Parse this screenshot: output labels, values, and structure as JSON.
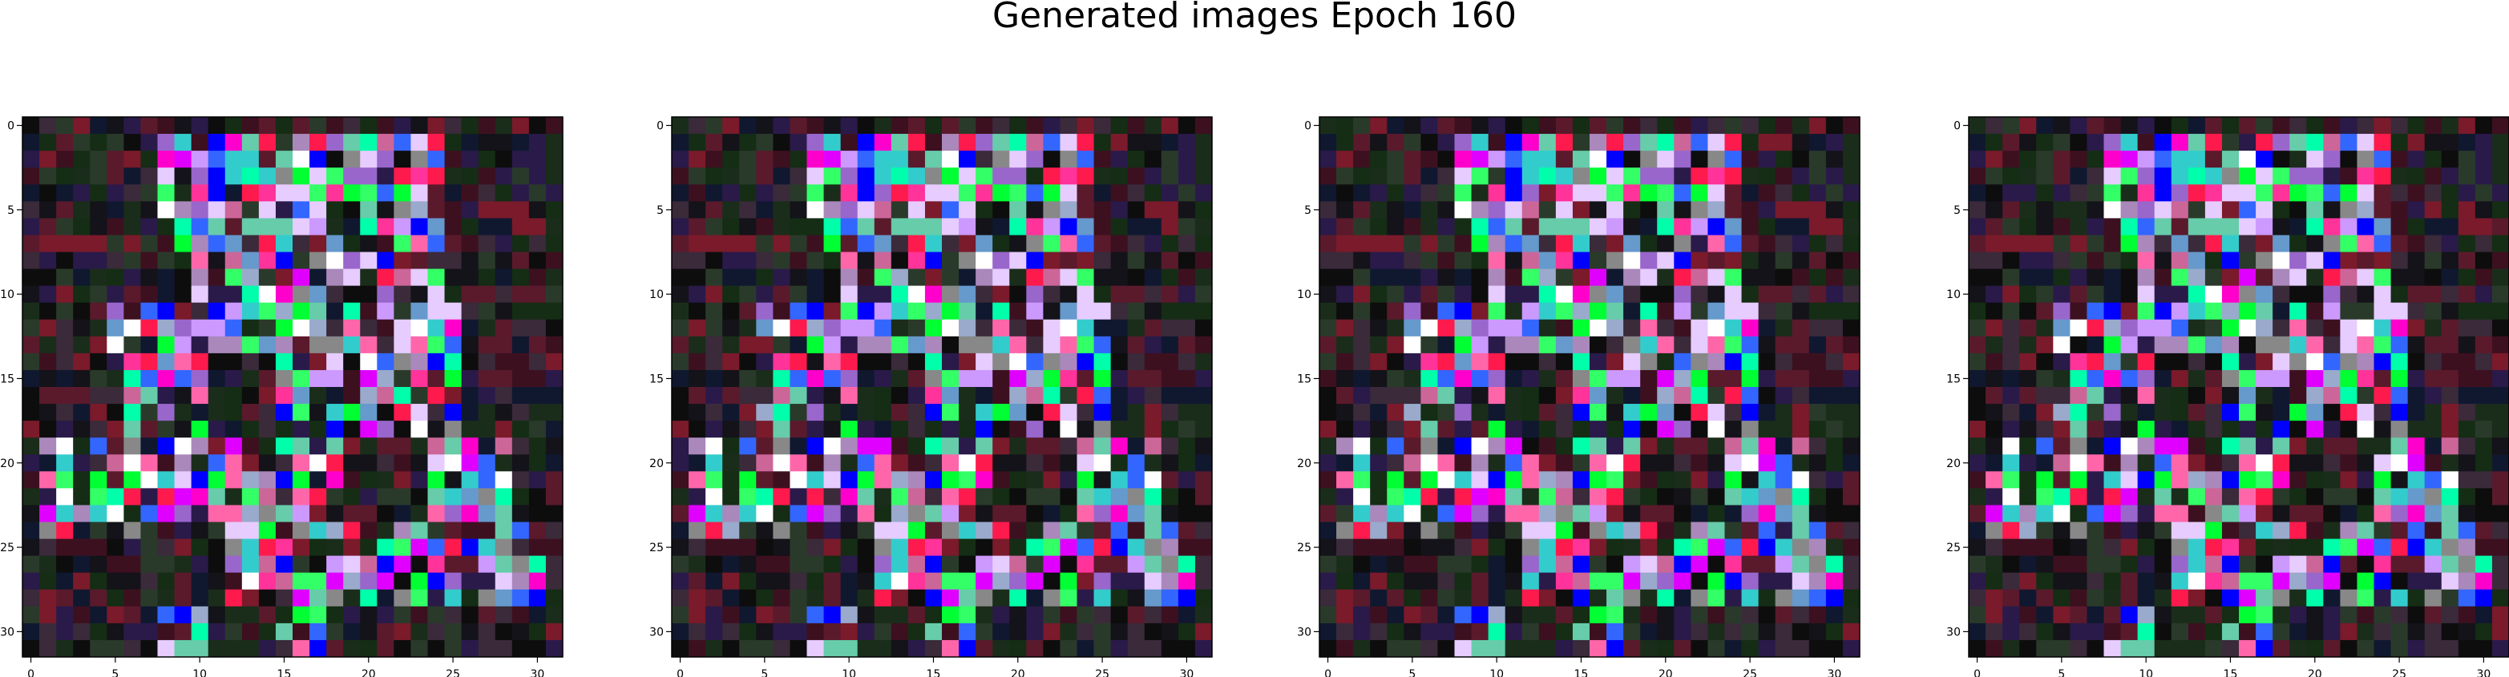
{
  "chart_data": {
    "type": "heatmap",
    "title": "Generated images Epoch 160",
    "panel_count": 4,
    "grid_size": 32,
    "x_ticks": [
      0,
      5,
      10,
      15,
      20,
      25,
      30
    ],
    "y_ticks": [
      0,
      5,
      10,
      15,
      20,
      25,
      30
    ],
    "xlim": [
      -0.5,
      31.5
    ],
    "ylim": [
      31.5,
      -0.5
    ],
    "palette": [
      "#0d0d0d",
      "#131319",
      "#1a2d1a",
      "#142d14",
      "#2a3a2a",
      "#101830",
      "#3d1020",
      "#5a1a2c",
      "#7a1a2a",
      "#2a1a4a",
      "#3a2a3a",
      "#ff00cc",
      "#e000ff",
      "#ff3399",
      "#ffffff",
      "#e6ccff",
      "#cc99ff",
      "#9966cc",
      "#ff66aa",
      "#00ff33",
      "#33ff66",
      "#00ffaa",
      "#33cccc",
      "#3366ff",
      "#0000ff",
      "#6699cc",
      "#99aacc",
      "#aa88bb",
      "#ff1a4d",
      "#cc6699",
      "#66ccaa",
      "#888888"
    ],
    "palette_note_colors": "dark noise background with bright magenta/cyan/green/white digit-like strokes",
    "seed": 160
  }
}
